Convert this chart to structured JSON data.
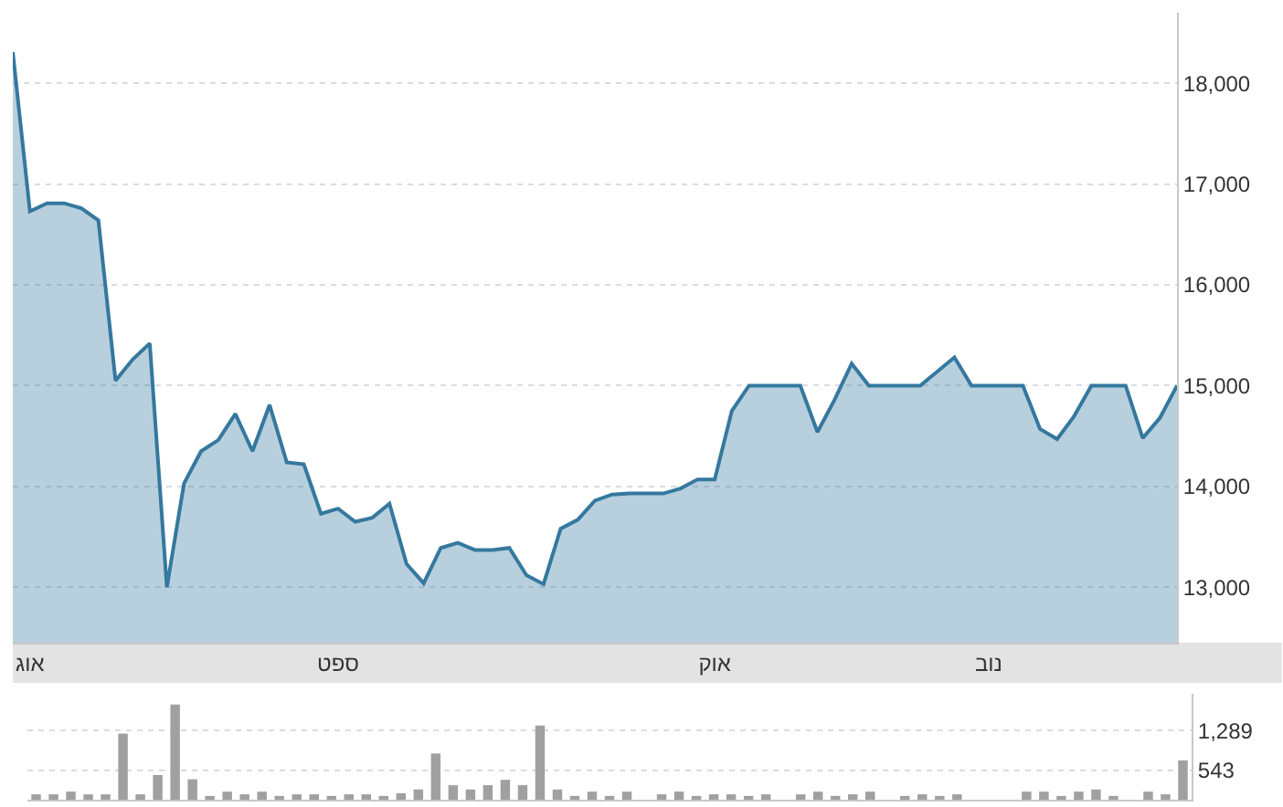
{
  "chart_data": [
    {
      "type": "area",
      "categories": [
        null,
        "אוג",
        null,
        null,
        null,
        null,
        null,
        null,
        null,
        null,
        null,
        null,
        null,
        null,
        null,
        null,
        null,
        null,
        null,
        "ספט",
        null,
        null,
        null,
        null,
        null,
        null,
        null,
        null,
        null,
        null,
        null,
        null,
        null,
        null,
        null,
        null,
        null,
        null,
        null,
        null,
        null,
        "אוק",
        null,
        null,
        null,
        null,
        null,
        null,
        null,
        null,
        null,
        null,
        null,
        null,
        null,
        null,
        null,
        "נוב",
        null,
        null,
        null,
        null,
        null,
        null,
        null,
        null,
        null,
        null,
        null
      ],
      "series": [
        {
          "color": "#35789f",
          "values": [
            18310,
            16730,
            16810,
            16810,
            16760,
            16640,
            15050,
            15260,
            15420,
            13000,
            14030,
            14350,
            14460,
            14720,
            14350,
            14810,
            14240,
            14220,
            13730,
            13780,
            13650,
            13690,
            13830,
            13230,
            13040,
            13390,
            13440,
            13370,
            13370,
            13390,
            13120,
            13030,
            13580,
            13670,
            13860,
            13920,
            13930,
            13930,
            13930,
            13980,
            14070,
            14070,
            14750,
            15000,
            15000,
            15000,
            15000,
            14540,
            14860,
            15220,
            15000,
            15000,
            15000,
            15000,
            15140,
            15280,
            15000,
            15000,
            15000,
            15000,
            14570,
            14470,
            14700,
            15000,
            15000,
            15000,
            14480,
            14680,
            15000
          ]
        }
      ],
      "ylim": [
        12450,
        18700
      ],
      "yticks": [
        {
          "value": 13000,
          "label": "13,000"
        },
        {
          "value": 14000,
          "label": "14,000"
        },
        {
          "value": 15000,
          "label": "15,000"
        },
        {
          "value": 16000,
          "label": "16,000"
        },
        {
          "value": 17000,
          "label": "17,000"
        },
        {
          "value": 18000,
          "label": "18,000"
        }
      ],
      "grid": "y",
      "legend": false,
      "marker": "none",
      "line_style": "solid"
    },
    {
      "type": "bar",
      "categories": [
        null,
        null,
        null,
        null,
        null,
        null,
        null,
        null,
        null,
        null,
        null,
        null,
        null,
        null,
        null,
        null,
        null,
        null,
        null,
        null,
        null,
        null,
        null,
        null,
        null,
        null,
        null,
        null,
        null,
        null,
        null,
        null,
        null,
        null,
        null,
        null,
        null,
        null,
        null,
        null,
        null,
        null,
        null,
        null,
        null,
        null,
        null,
        null,
        null,
        null,
        null,
        null,
        null,
        null,
        null,
        null,
        null,
        null,
        null,
        null,
        null,
        null,
        null,
        null,
        null,
        null,
        null
      ],
      "series": [
        {
          "color": "#a0a0a0",
          "values": [
            100,
            100,
            150,
            100,
            100,
            1230,
            100,
            460,
            1770,
            380,
            70,
            150,
            100,
            150,
            70,
            100,
            100,
            70,
            100,
            100,
            70,
            120,
            190,
            860,
            270,
            190,
            270,
            370,
            270,
            1380,
            190,
            70,
            150,
            70,
            150,
            null,
            100,
            150,
            70,
            100,
            100,
            70,
            100,
            null,
            100,
            150,
            70,
            100,
            150,
            null,
            70,
            100,
            70,
            100,
            null,
            null,
            null,
            150,
            150,
            70,
            150,
            190,
            70,
            null,
            150,
            100,
            730
          ]
        }
      ],
      "ylim": [
        0,
        1970
      ],
      "yticks": [
        {
          "value": 543,
          "label": "543"
        },
        {
          "value": 1289,
          "label": "1,289"
        }
      ],
      "grid": "y",
      "legend": false,
      "tick_labels": "y"
    }
  ]
}
